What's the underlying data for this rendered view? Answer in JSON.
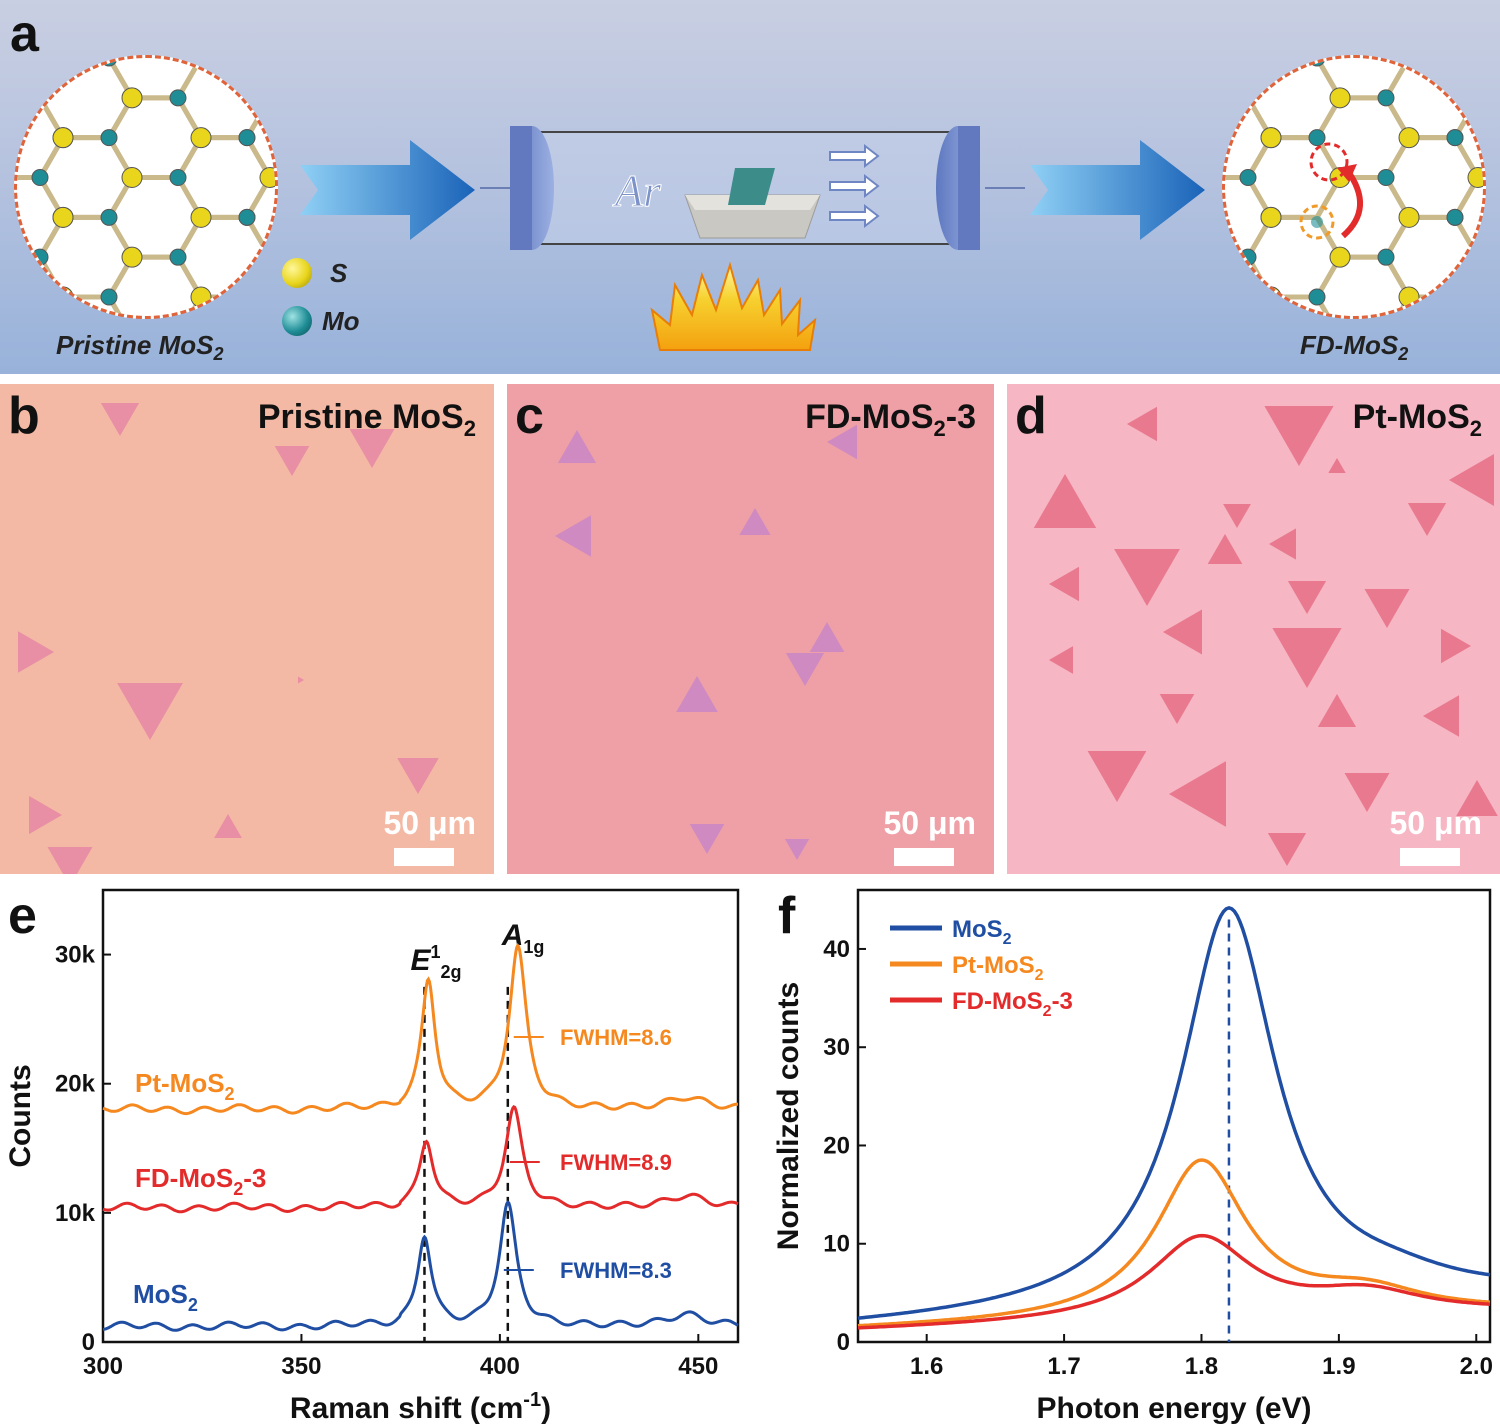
{
  "panel_a": {
    "letter": "a",
    "pristine_label": "Pristine MoS",
    "pristine_sub": "2",
    "fd_label": "FD-MoS",
    "fd_sub": "2",
    "legend_s": "S",
    "legend_mo": "Mo",
    "gas_label": "Ar",
    "colors": {
      "s_atom": "#e8d51c",
      "mo_atom": "#1f8d96",
      "arrow": "#2f7fd0",
      "background": "#a9bcdc"
    }
  },
  "panel_b": {
    "letter": "b",
    "title": "Pristine MoS",
    "title_sub": "2",
    "scale": "50 μm",
    "colors": {
      "substrate": "#f4b9a4",
      "flake": "#e88ea5"
    }
  },
  "panel_c": {
    "letter": "c",
    "title": "FD-MoS",
    "title_sub": "2",
    "title_suffix": "-3",
    "scale": "50 μm",
    "colors": {
      "substrate": "#eea0a6",
      "flake": "#cf8ac2"
    }
  },
  "panel_d": {
    "letter": "d",
    "title": "Pt-MoS",
    "title_sub": "2",
    "scale": "50 μm",
    "colors": {
      "substrate": "#f6b6c4",
      "flake": "#e9798f"
    }
  },
  "chart_data": [
    {
      "panel": "e",
      "type": "line",
      "xlabel": "Raman shift (cm",
      "xlabel_sup": "-1",
      "xlabel_end": ")",
      "ylabel": "Counts",
      "xlim": [
        300,
        460
      ],
      "ylim": [
        0,
        35000
      ],
      "xticks": [
        300,
        350,
        400,
        450
      ],
      "yticks": [
        {
          "value": 0,
          "label": "0"
        },
        {
          "value": 10000,
          "label": "10k"
        },
        {
          "value": 20000,
          "label": "20k"
        },
        {
          "value": 30000,
          "label": "30k"
        }
      ],
      "peak_labels": [
        {
          "base": "E",
          "sup": "1",
          "sub": "2g",
          "x": 381
        },
        {
          "base": "A",
          "sub": "1g",
          "x": 404
        }
      ],
      "dashed_lines": [
        381,
        402
      ],
      "series": [
        {
          "name": "Pt-MoS",
          "name_sub": "2",
          "color": "#f5881f",
          "baseline": 18000,
          "e_peak_x": 382,
          "e_peak_amp": 10000,
          "a_peak_x": 404.5,
          "a_peak_amp": 12500,
          "fwhm": "FWHM=8.6"
        },
        {
          "name": "FD-MoS",
          "name_sub": "2",
          "name_suffix": "-3",
          "color": "#e32b2b",
          "baseline": 10400,
          "e_peak_x": 381.5,
          "e_peak_amp": 5200,
          "a_peak_x": 403.5,
          "a_peak_amp": 7600,
          "fwhm": "FWHM=8.9"
        },
        {
          "name": "MoS",
          "name_sub": "2",
          "color": "#1f4ea3",
          "baseline": 1200,
          "e_peak_x": 381,
          "e_peak_amp": 7000,
          "a_peak_x": 402,
          "a_peak_amp": 9400,
          "fwhm": "FWHM=8.3"
        }
      ]
    },
    {
      "panel": "f",
      "type": "line",
      "xlabel": "Photon energy (eV)",
      "ylabel": "Normalized counts",
      "xlim": [
        1.55,
        2.01
      ],
      "ylim": [
        0,
        46
      ],
      "xticks": [
        1.6,
        1.7,
        1.8,
        1.9,
        2.0
      ],
      "yticks": [
        0,
        10,
        20,
        30,
        40
      ],
      "dashed_line": 1.82,
      "legend_position": "top-left",
      "series": [
        {
          "name": "MoS",
          "name_sub": "2",
          "color": "#1f4ea3",
          "peak_x": 1.82,
          "peak_y": 44,
          "y_start": 1.4,
          "y_end": 4.6
        },
        {
          "name": "Pt-MoS",
          "name_sub": "2",
          "color": "#f5881f",
          "peak_x": 1.8,
          "peak_y": 18.2,
          "y_start": 1.2,
          "y_end": 3.0
        },
        {
          "name": "FD-MoS",
          "name_sub": "2",
          "name_suffix": "-3",
          "color": "#e32b2b",
          "peak_x": 1.8,
          "peak_y": 10.5,
          "y_start": 1.1,
          "y_end": 3.0
        }
      ]
    }
  ]
}
